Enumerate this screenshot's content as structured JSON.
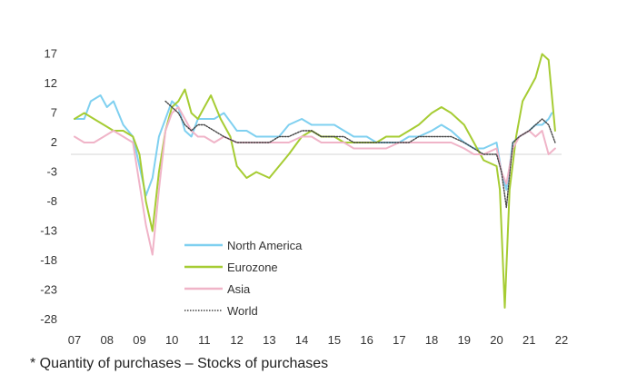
{
  "chart_data": {
    "type": "line",
    "title": "",
    "xlabel": "",
    "ylabel": "",
    "x_ticks": [
      "07",
      "08",
      "09",
      "10",
      "11",
      "12",
      "13",
      "14",
      "15",
      "16",
      "17",
      "18",
      "19",
      "20",
      "21",
      "22"
    ],
    "y_ticks": [
      17,
      12,
      7,
      2,
      -3,
      -8,
      -13,
      -18,
      -23,
      -28
    ],
    "xlim": [
      2007.0,
      2022.0
    ],
    "ylim": [
      -28,
      20
    ],
    "baseline": 0,
    "grid": false,
    "legend_position": "bottom-center",
    "series": [
      {
        "name": "North America",
        "color": "#7fd0f0",
        "x": [
          2007.0,
          2007.3,
          2007.5,
          2007.8,
          2008.0,
          2008.2,
          2008.5,
          2008.8,
          2009.0,
          2009.2,
          2009.4,
          2009.6,
          2009.8,
          2010.0,
          2010.2,
          2010.4,
          2010.6,
          2010.8,
          2011.0,
          2011.3,
          2011.6,
          2012.0,
          2012.3,
          2012.6,
          2013.0,
          2013.3,
          2013.6,
          2014.0,
          2014.3,
          2014.6,
          2015.0,
          2015.3,
          2015.6,
          2016.0,
          2016.3,
          2016.6,
          2017.0,
          2017.3,
          2017.6,
          2018.0,
          2018.3,
          2018.6,
          2019.0,
          2019.3,
          2019.6,
          2020.0,
          2020.15,
          2020.3,
          2020.5,
          2020.7,
          2021.0,
          2021.2,
          2021.4,
          2021.6,
          2021.7
        ],
        "values": [
          6,
          6,
          9,
          10,
          8,
          9,
          5,
          3,
          -2,
          -7,
          -4,
          3,
          6,
          9,
          8,
          4,
          3,
          6,
          6,
          6,
          7,
          4,
          4,
          3,
          3,
          3,
          5,
          6,
          5,
          5,
          5,
          4,
          3,
          3,
          2,
          2,
          2,
          3,
          3,
          4,
          5,
          4,
          2,
          1,
          1,
          2,
          -3,
          -6,
          2,
          3,
          4,
          5,
          5,
          6,
          7
        ]
      },
      {
        "name": "Eurozone",
        "color": "#a6cc33",
        "x": [
          2007.0,
          2007.3,
          2007.6,
          2007.9,
          2008.2,
          2008.5,
          2008.8,
          2009.0,
          2009.2,
          2009.4,
          2009.6,
          2009.8,
          2010.0,
          2010.2,
          2010.4,
          2010.6,
          2010.8,
          2011.0,
          2011.2,
          2011.5,
          2011.8,
          2012.0,
          2012.3,
          2012.6,
          2013.0,
          2013.3,
          2013.6,
          2014.0,
          2014.3,
          2014.6,
          2015.0,
          2015.3,
          2015.6,
          2016.0,
          2016.3,
          2016.6,
          2017.0,
          2017.3,
          2017.6,
          2018.0,
          2018.3,
          2018.6,
          2019.0,
          2019.3,
          2019.6,
          2020.0,
          2020.1,
          2020.25,
          2020.4,
          2020.6,
          2020.8,
          2021.0,
          2021.2,
          2021.4,
          2021.6,
          2021.8
        ],
        "values": [
          6,
          7,
          6,
          5,
          4,
          4,
          3,
          0,
          -8,
          -13,
          -3,
          4,
          8,
          9,
          11,
          7,
          6,
          8,
          10,
          6,
          3,
          -2,
          -4,
          -3,
          -4,
          -2,
          0,
          3,
          4,
          3,
          3,
          2,
          2,
          2,
          2,
          3,
          3,
          4,
          5,
          7,
          8,
          7,
          5,
          2,
          -1,
          -2,
          -6,
          -26,
          -6,
          3,
          9,
          11,
          13,
          17,
          16,
          4
        ]
      },
      {
        "name": "Asia",
        "color": "#f0b4c8",
        "x": [
          2007.0,
          2007.3,
          2007.6,
          2007.9,
          2008.2,
          2008.5,
          2008.8,
          2009.0,
          2009.2,
          2009.4,
          2009.6,
          2009.8,
          2010.0,
          2010.2,
          2010.4,
          2010.6,
          2010.8,
          2011.0,
          2011.3,
          2011.6,
          2012.0,
          2012.3,
          2012.6,
          2013.0,
          2013.3,
          2013.6,
          2014.0,
          2014.3,
          2014.6,
          2015.0,
          2015.3,
          2015.6,
          2016.0,
          2016.3,
          2016.6,
          2017.0,
          2017.3,
          2017.6,
          2018.0,
          2018.3,
          2018.6,
          2019.0,
          2019.3,
          2019.6,
          2020.0,
          2020.15,
          2020.3,
          2020.5,
          2020.7,
          2021.0,
          2021.2,
          2021.4,
          2021.6,
          2021.8
        ],
        "values": [
          3,
          2,
          2,
          3,
          4,
          3,
          2,
          -5,
          -12,
          -17,
          -6,
          4,
          7,
          8,
          6,
          4,
          3,
          3,
          2,
          3,
          2,
          2,
          2,
          2,
          2,
          2,
          3,
          3,
          2,
          2,
          2,
          1,
          1,
          1,
          1,
          2,
          2,
          2,
          2,
          2,
          2,
          1,
          0,
          0,
          1,
          -3,
          -5,
          1,
          3,
          4,
          3,
          4,
          0,
          1
        ]
      },
      {
        "name": "World",
        "color": "#444444",
        "x": [
          2009.8,
          2010.0,
          2010.2,
          2010.4,
          2010.6,
          2010.8,
          2011.0,
          2011.3,
          2011.6,
          2012.0,
          2012.3,
          2012.6,
          2013.0,
          2013.3,
          2013.6,
          2014.0,
          2014.3,
          2014.6,
          2015.0,
          2015.3,
          2015.6,
          2016.0,
          2016.3,
          2016.6,
          2017.0,
          2017.3,
          2017.6,
          2018.0,
          2018.3,
          2018.6,
          2019.0,
          2019.3,
          2019.6,
          2020.0,
          2020.15,
          2020.3,
          2020.5,
          2020.7,
          2021.0,
          2021.2,
          2021.4,
          2021.6,
          2021.8
        ],
        "values": [
          9,
          8,
          7,
          5,
          4,
          5,
          5,
          4,
          3,
          2,
          2,
          2,
          2,
          3,
          3,
          4,
          4,
          3,
          3,
          3,
          2,
          2,
          2,
          2,
          2,
          2,
          3,
          3,
          3,
          3,
          2,
          1,
          0,
          0,
          -3,
          -9,
          2,
          3,
          4,
          5,
          6,
          5,
          2
        ]
      }
    ]
  },
  "footnote": "* Quantity of purchases – Stocks of purchases"
}
